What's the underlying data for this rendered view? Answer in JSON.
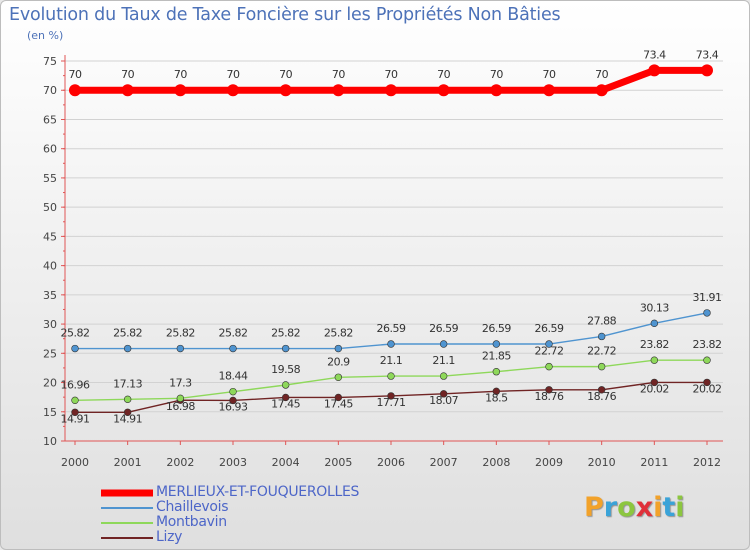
{
  "chart_data": {
    "type": "line",
    "title": "Evolution du Taux de Taxe Foncière sur les Propriétés Non Bâties",
    "ylabel": "(en %)",
    "xlabel": "",
    "ylim": [
      10,
      75
    ],
    "yticks": [
      10,
      15,
      20,
      25,
      30,
      35,
      40,
      45,
      50,
      55,
      60,
      65,
      70,
      75
    ],
    "categories": [
      "2000",
      "2001",
      "2002",
      "2003",
      "2004",
      "2005",
      "2006",
      "2007",
      "2008",
      "2009",
      "2010",
      "2011",
      "2012"
    ],
    "series": [
      {
        "name": "MERLIEUX-ET-FOUQUEROLLES",
        "color": "#ff0000",
        "values": [
          70,
          70,
          70,
          70,
          70,
          70,
          70,
          70,
          70,
          70,
          70,
          73.4,
          73.4
        ],
        "labels": [
          "70",
          "70",
          "70",
          "70",
          "70",
          "70",
          "70",
          "70",
          "70",
          "70",
          "70",
          "73.4",
          "73.4"
        ]
      },
      {
        "name": "Chaillevois",
        "color": "#4f94d0",
        "values": [
          25.82,
          25.82,
          25.82,
          25.82,
          25.82,
          25.82,
          26.59,
          26.59,
          26.59,
          26.59,
          27.88,
          30.13,
          31.91
        ],
        "labels": [
          "25.82",
          "25.82",
          "25.82",
          "25.82",
          "25.82",
          "25.82",
          "26.59",
          "26.59",
          "26.59",
          "26.59",
          "27.88",
          "30.13",
          "31.91"
        ]
      },
      {
        "name": "Montbavin",
        "color": "#8ed85a",
        "values": [
          16.96,
          17.13,
          17.3,
          18.44,
          19.58,
          20.9,
          21.1,
          21.1,
          21.85,
          22.72,
          22.72,
          23.82,
          23.82
        ],
        "labels": [
          "16.96",
          "17.13",
          "17.3",
          "18.44",
          "19.58",
          "20.9",
          "21.1",
          "21.1",
          "21.85",
          "22.72",
          "22.72",
          "23.82",
          "23.82"
        ]
      },
      {
        "name": "Lizy",
        "color": "#702424",
        "values": [
          14.91,
          14.91,
          16.98,
          16.93,
          17.45,
          17.45,
          17.71,
          18.07,
          18.5,
          18.76,
          18.76,
          20.02,
          20.02
        ],
        "labels": [
          "14.91",
          "14.91",
          "16.98",
          "16.93",
          "17.45",
          "17.45",
          "17.71",
          "18.07",
          "18.5",
          "18.76",
          "18.76",
          "20.02",
          "20.02"
        ]
      }
    ]
  },
  "logo": {
    "letters": [
      "P",
      "r",
      "o",
      "x",
      "i",
      "t",
      "i"
    ],
    "colors": [
      "#f2a22a",
      "#3aa3d8",
      "#8cc63f",
      "#e0303a",
      "#f2a22a",
      "#3aa3d8",
      "#8cc63f"
    ]
  }
}
